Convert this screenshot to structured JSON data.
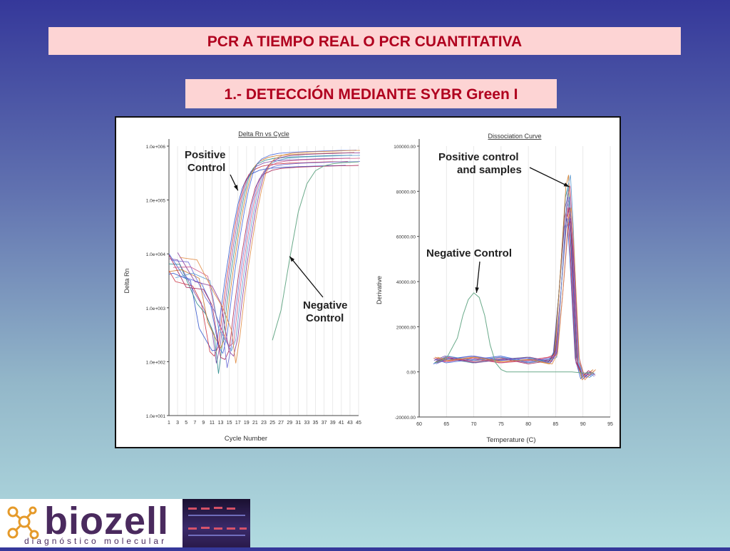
{
  "page": {
    "title": "PCR A TIEMPO REAL O PCR CUANTITATIVA",
    "subtitle": "1.- DETECCIÓN MEDIANTE SYBR Green I"
  },
  "logo": {
    "word": "biozell",
    "tagline": "diagnóstico molecular"
  },
  "colors": {
    "banner_bg": "#fdd4d4",
    "banner_text": "#b0001e",
    "brand": "#4a2a5e",
    "negative_curve": "#6aaa8a"
  },
  "chart_data": [
    {
      "type": "line",
      "title": "Delta Rn vs Cycle",
      "xlabel": "Cycle Number",
      "ylabel": "Delta Rn",
      "yscale": "log",
      "ylim": [
        10,
        1000000
      ],
      "xlim": [
        1,
        45
      ],
      "x_ticks": [
        "1",
        "3",
        "5",
        "7",
        "9",
        "11",
        "13",
        "15",
        "17",
        "19",
        "21",
        "23",
        "25",
        "27",
        "29",
        "31",
        "33",
        "35",
        "37",
        "39",
        "41",
        "43",
        "45"
      ],
      "y_ticks": [
        "1.0e+001",
        "1.0e+002",
        "1.0e+003",
        "1.0e+004",
        "1.0e+005",
        "1.0e+006"
      ],
      "grid": "vertical",
      "annotations": [
        {
          "label": "Positive Control",
          "x": 17,
          "y": 150000
        },
        {
          "label": "Negative Control",
          "x": 29,
          "y": 9000
        }
      ],
      "series": [
        {
          "kind": "positive",
          "x": [
            1,
            5,
            9,
            11,
            13,
            14,
            15,
            16,
            17,
            18,
            19,
            20,
            21,
            22,
            23,
            25,
            27,
            29,
            31,
            33,
            35,
            37,
            39,
            41,
            43,
            45
          ],
          "y": [
            6000,
            4000,
            2000,
            700,
            200,
            100,
            300,
            1500,
            6000,
            20000,
            60000,
            150000,
            300000,
            450000,
            550000,
            650000,
            700000,
            720000,
            740000,
            750000,
            760000,
            770000,
            780000,
            790000,
            790000,
            800000
          ]
        },
        {
          "kind": "negative",
          "x": [
            25,
            27,
            29,
            31,
            33,
            35,
            37,
            39,
            41,
            43,
            45
          ],
          "y": [
            250,
            900,
            8000,
            60000,
            200000,
            350000,
            430000,
            470000,
            490000,
            500000,
            510000
          ]
        }
      ]
    },
    {
      "type": "line",
      "title": "Dissociation Curve",
      "xlabel": "Temperature (C)",
      "ylabel": "Derivative",
      "xlim": [
        60,
        95
      ],
      "ylim": [
        -20000,
        100000
      ],
      "x_ticks": [
        "60",
        "65",
        "70",
        "75",
        "80",
        "85",
        "90",
        "95"
      ],
      "y_ticks": [
        "-20000.00",
        "0.00",
        "20000.00",
        "40000.00",
        "60000.00",
        "80000.00",
        "100000.00"
      ],
      "grid": "vertical",
      "annotations": [
        {
          "label": "Positive control and samples",
          "x": 87.5,
          "y": 82000
        },
        {
          "label": "Negative Control",
          "x": 70.5,
          "y": 35000
        }
      ],
      "series": [
        {
          "kind": "positive",
          "x": [
            63,
            65,
            70,
            75,
            80,
            84,
            85,
            86,
            87,
            87.5,
            88,
            89,
            90,
            91,
            92
          ],
          "y": [
            5000,
            5500,
            5500,
            5500,
            5000,
            5000,
            8000,
            40000,
            75000,
            80000,
            60000,
            5000,
            -2000,
            -1000,
            -500
          ]
        },
        {
          "kind": "negative",
          "x": [
            63,
            65,
            67,
            68,
            69,
            70,
            71,
            72,
            73,
            74,
            75,
            76,
            80,
            85,
            88,
            90,
            92
          ],
          "y": [
            4000,
            6000,
            15000,
            25000,
            32000,
            35000,
            33000,
            25000,
            12000,
            4000,
            1000,
            0,
            0,
            0,
            0,
            -500,
            -500
          ]
        }
      ]
    }
  ]
}
